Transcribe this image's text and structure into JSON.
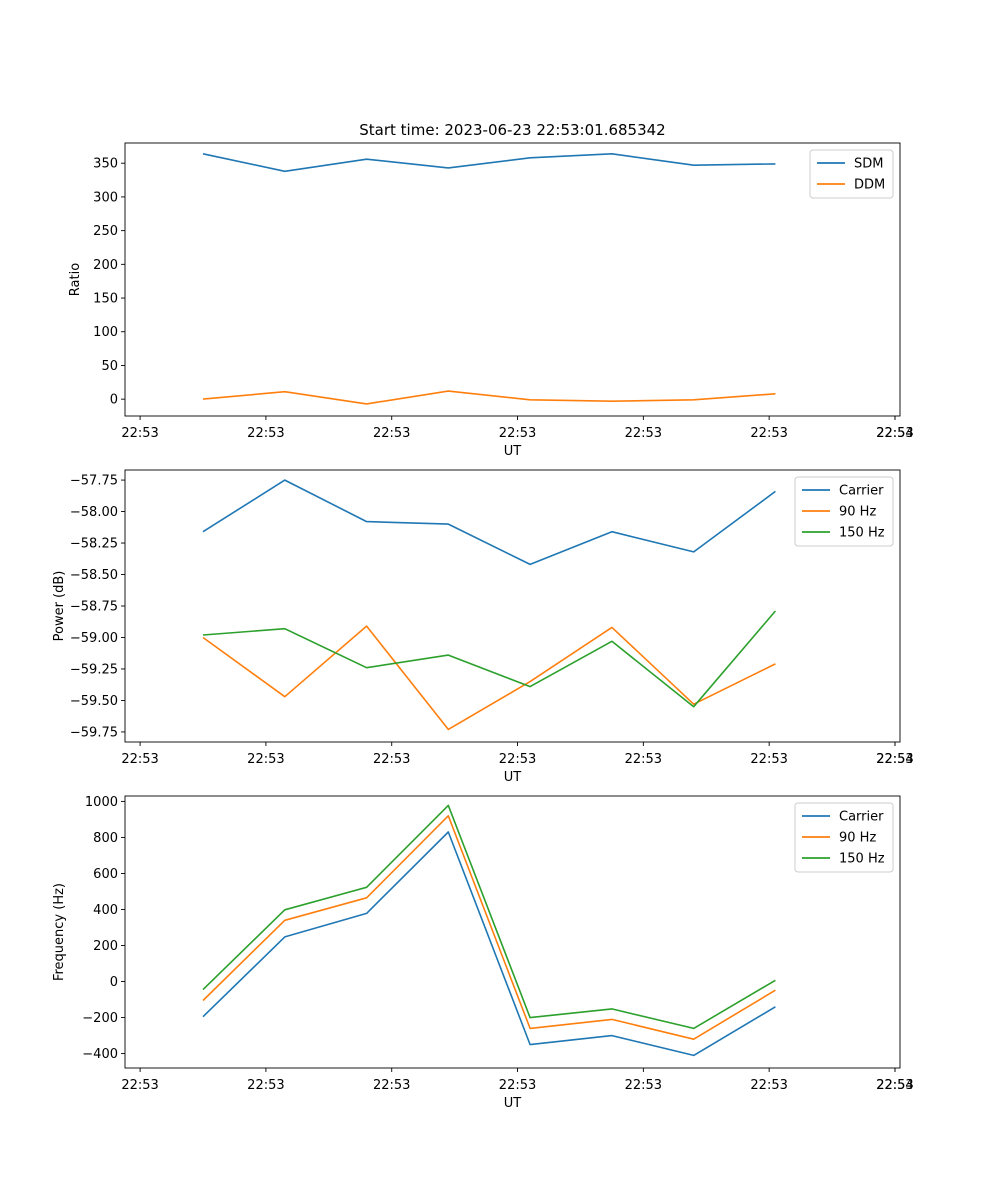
{
  "chart_data": [
    {
      "type": "line",
      "title": "Start time: 2023-06-23 22:53:01.685342",
      "xlabel": "UT",
      "ylabel": "Ratio",
      "x_ticks": [
        "22:53",
        "22:53",
        "22:53",
        "22:53",
        "22:53",
        "22:53",
        "22:53"
      ],
      "x_end_tick": "22:54",
      "ylim": [
        -25,
        380
      ],
      "y_ticks": [
        0,
        50,
        100,
        150,
        200,
        250,
        300,
        350
      ],
      "legend": "upper right",
      "series": [
        {
          "name": "SDM",
          "color": "#1f77b4",
          "values": [
            364,
            338,
            356,
            343,
            358,
            364,
            347,
            349
          ]
        },
        {
          "name": "DDM",
          "color": "#ff7f0e",
          "values": [
            0,
            11,
            -7,
            12,
            -1,
            -3,
            -1,
            8
          ]
        }
      ]
    },
    {
      "type": "line",
      "title": "",
      "xlabel": "UT",
      "ylabel": "Power (dB)",
      "x_ticks": [
        "22:53",
        "22:53",
        "22:53",
        "22:53",
        "22:53",
        "22:53",
        "22:53"
      ],
      "x_end_tick": "22:54",
      "ylim": [
        -59.83,
        -57.67
      ],
      "y_ticks": [
        -59.75,
        -59.5,
        -59.25,
        -59.0,
        -58.75,
        -58.5,
        -58.25,
        -58.0,
        -57.75
      ],
      "y_tick_labels": [
        "−59.75",
        "−59.50",
        "−59.25",
        "−59.00",
        "−58.75",
        "−58.50",
        "−58.25",
        "−58.00",
        "−57.75"
      ],
      "legend": "upper right",
      "series": [
        {
          "name": "Carrier",
          "color": "#1f77b4",
          "values": [
            -58.16,
            -57.75,
            -58.08,
            -58.1,
            -58.42,
            -58.16,
            -58.32,
            -57.84
          ]
        },
        {
          "name": "90 Hz",
          "color": "#ff7f0e",
          "values": [
            -59.0,
            -59.47,
            -58.91,
            -59.73,
            -59.35,
            -58.92,
            -59.53,
            -59.21
          ]
        },
        {
          "name": "150 Hz",
          "color": "#2ca02c",
          "values": [
            -58.98,
            -58.93,
            -59.24,
            -59.14,
            -59.39,
            -59.03,
            -59.55,
            -58.79
          ]
        }
      ]
    },
    {
      "type": "line",
      "title": "",
      "xlabel": "UT",
      "ylabel": "Frequency (Hz)",
      "x_ticks": [
        "22:53",
        "22:53",
        "22:53",
        "22:53",
        "22:53",
        "22:53",
        "22:53"
      ],
      "x_end_tick": "22:54",
      "ylim": [
        -480,
        1030
      ],
      "y_ticks": [
        -400,
        -200,
        0,
        200,
        400,
        600,
        800,
        1000
      ],
      "y_tick_labels": [
        "−400",
        "−200",
        "0",
        "200",
        "400",
        "600",
        "800",
        "1000"
      ],
      "legend": "upper right",
      "series": [
        {
          "name": "Carrier",
          "color": "#1f77b4",
          "values": [
            -195,
            248,
            378,
            830,
            -350,
            -300,
            -410,
            -140
          ]
        },
        {
          "name": "90 Hz",
          "color": "#ff7f0e",
          "values": [
            -105,
            340,
            465,
            920,
            -260,
            -210,
            -320,
            -48
          ]
        },
        {
          "name": "150 Hz",
          "color": "#2ca02c",
          "values": [
            -45,
            398,
            523,
            978,
            -200,
            -152,
            -260,
            7
          ]
        }
      ]
    }
  ]
}
